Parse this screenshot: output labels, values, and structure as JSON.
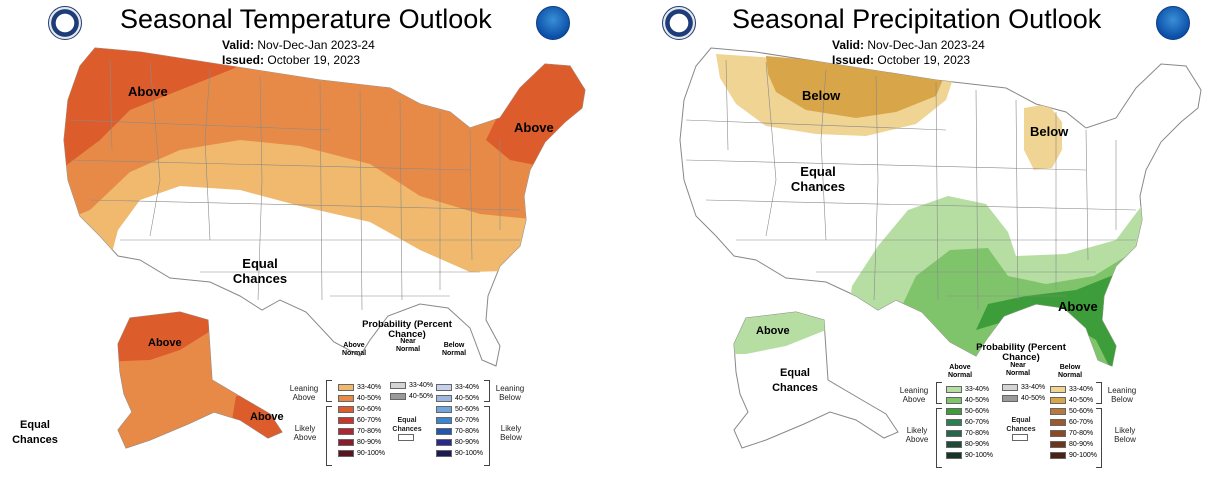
{
  "panels": {
    "temp": {
      "title": "Seasonal Temperature Outlook",
      "valid_label": "Valid:",
      "valid_value": "Nov-Dec-Jan 2023-24",
      "issued_label": "Issued:",
      "issued_value": "October 19, 2023",
      "regions": {
        "above_nw": "Above",
        "above_ne": "Above",
        "equal_chances": "Equal Chances",
        "alaska_above_n": "Above",
        "alaska_above_se": "Above",
        "alaska_equal": "Equal Chances"
      },
      "colors": {
        "c33": "#f0b96e",
        "c40": "#e88a47",
        "c50": "#dc5c2c"
      }
    },
    "precip": {
      "title": "Seasonal Precipitation Outlook",
      "valid_label": "Valid:",
      "valid_value": "Nov-Dec-Jan 2023-24",
      "issued_label": "Issued:",
      "issued_value": "October 19, 2023",
      "regions": {
        "below_north": "Below",
        "below_michigan": "Below",
        "equal_chances": "Equal Chances",
        "above_south": "Above",
        "alaska_above": "Above",
        "alaska_equal": "Equal Chances"
      },
      "colors": {
        "c33": "#b6dea2",
        "c40": "#7fc46b",
        "c50": "#3e9d3b",
        "b33": "#f0d494",
        "b40": "#d8a548"
      }
    }
  },
  "legend": {
    "title": "Probability (Percent Chance)",
    "near_normal": "Near Normal",
    "equal_chances": "Equal Chances",
    "leaning_above": "Leaning Above",
    "leaning_below": "Leaning Below",
    "likely_above": "Likely Above",
    "likely_below": "Likely Below",
    "near_rows": [
      "33-40%",
      "40-50%"
    ],
    "temp": {
      "above_head": "Above Normal",
      "below_head": "Below Normal",
      "above": [
        {
          "label": "33-40%",
          "color": "#f0b96e"
        },
        {
          "label": "40-50%",
          "color": "#e88a47"
        },
        {
          "label": "50-60%",
          "color": "#dc5c2c"
        },
        {
          "label": "60-70%",
          "color": "#c8382a"
        },
        {
          "label": "70-80%",
          "color": "#b02632"
        },
        {
          "label": "80-90%",
          "color": "#8a1a2c"
        },
        {
          "label": "90-100%",
          "color": "#5a1420"
        }
      ],
      "below": [
        {
          "label": "33-40%",
          "color": "#c6d2ec"
        },
        {
          "label": "40-50%",
          "color": "#9eb8e0"
        },
        {
          "label": "50-60%",
          "color": "#6fa6de"
        },
        {
          "label": "60-70%",
          "color": "#3b86d2"
        },
        {
          "label": "70-80%",
          "color": "#2456b0"
        },
        {
          "label": "80-90%",
          "color": "#2a2a8a"
        },
        {
          "label": "90-100%",
          "color": "#1c1a55"
        }
      ],
      "near_colors": [
        "#d4d4d4",
        "#9a9a9a"
      ]
    },
    "precip": {
      "above_head": "Above Normal",
      "below_head": "Below Normal",
      "above": [
        {
          "label": "33-40%",
          "color": "#b6dea2"
        },
        {
          "label": "40-50%",
          "color": "#7fc46b"
        },
        {
          "label": "50-60%",
          "color": "#3e9d3b"
        },
        {
          "label": "60-70%",
          "color": "#2c8050"
        },
        {
          "label": "70-80%",
          "color": "#28654a"
        },
        {
          "label": "80-90%",
          "color": "#1f4a36"
        },
        {
          "label": "90-100%",
          "color": "#163823"
        }
      ],
      "below": [
        {
          "label": "33-40%",
          "color": "#f0d494"
        },
        {
          "label": "40-50%",
          "color": "#d8a548"
        },
        {
          "label": "50-60%",
          "color": "#b87a3c"
        },
        {
          "label": "60-70%",
          "color": "#9a5a30"
        },
        {
          "label": "70-80%",
          "color": "#8a4a28"
        },
        {
          "label": "80-90%",
          "color": "#6a361c"
        },
        {
          "label": "90-100%",
          "color": "#4a2412"
        }
      ],
      "near_colors": [
        "#d4d4d4",
        "#9a9a9a"
      ]
    }
  }
}
